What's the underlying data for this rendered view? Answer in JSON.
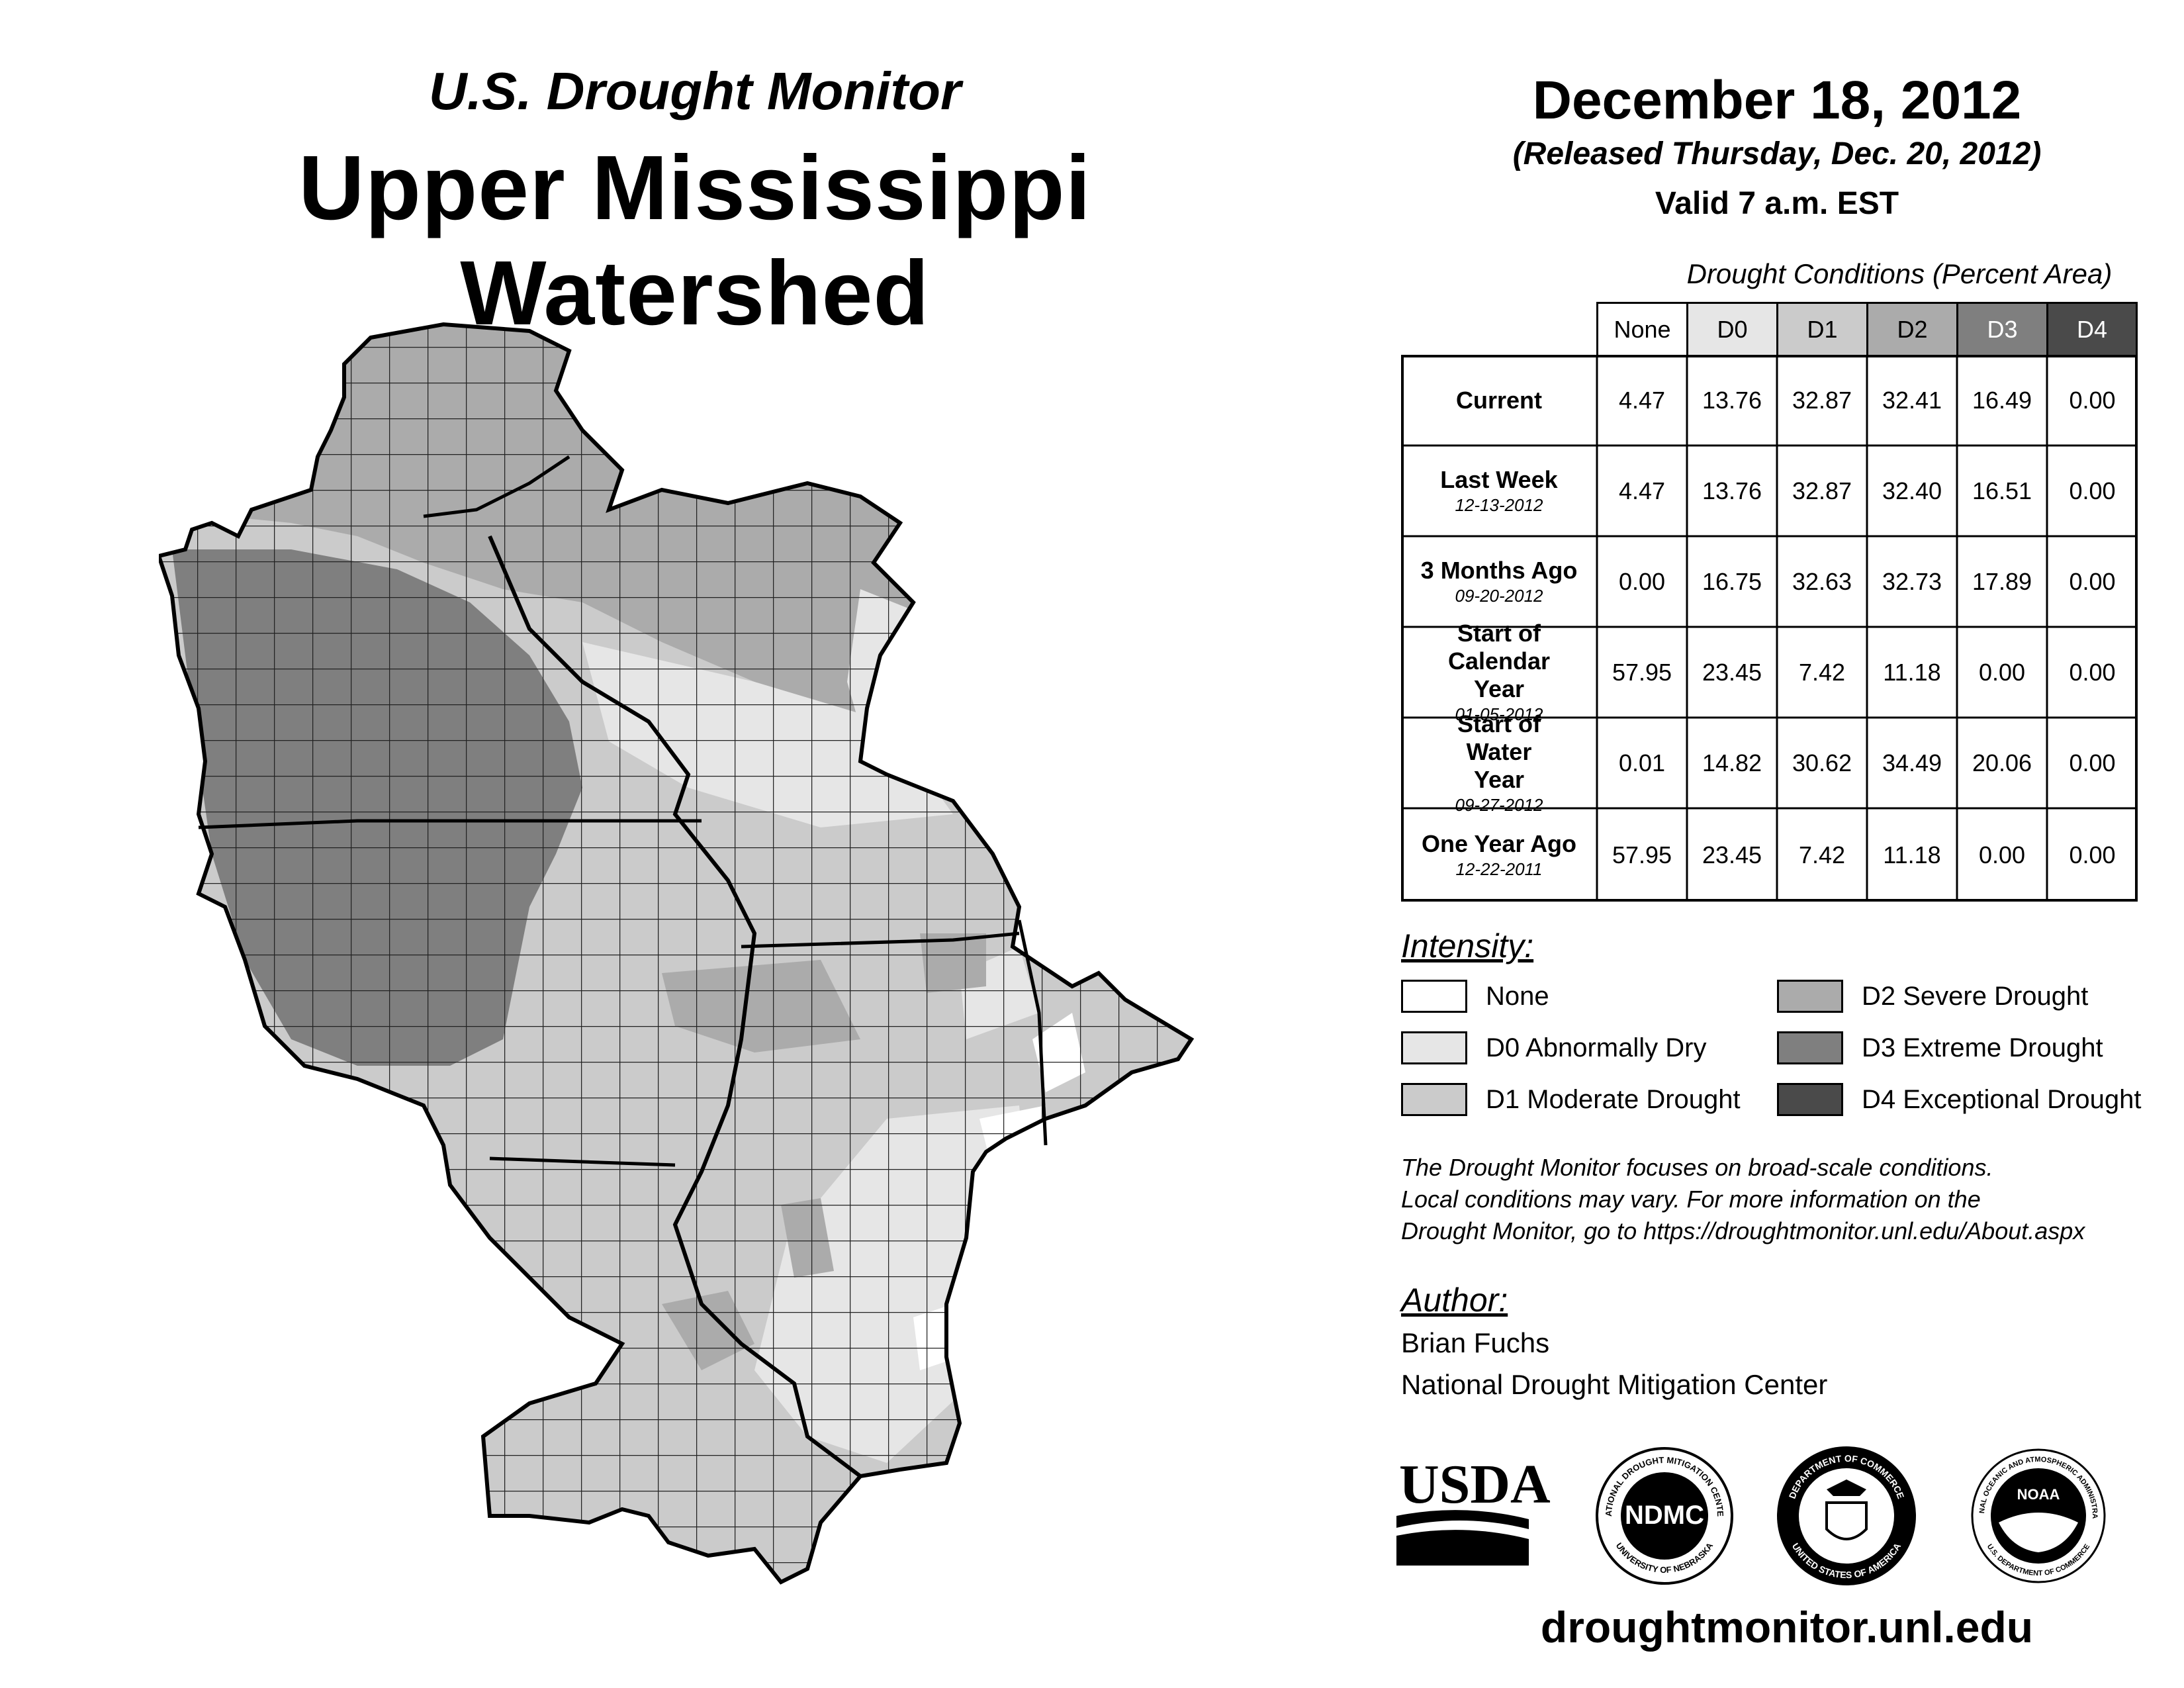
{
  "header": {
    "subtitle": "U.S. Drought Monitor",
    "title": "Upper Mississippi Watershed",
    "date": "December 18, 2012",
    "released": "(Released Thursday, Dec. 20, 2012)",
    "valid": "Valid 7 a.m. EST"
  },
  "table": {
    "caption": "Drought Conditions (Percent Area)",
    "columns": [
      "None",
      "D0",
      "D1",
      "D2",
      "D3",
      "D4"
    ],
    "rows": [
      {
        "label": "Current",
        "date": "",
        "values": [
          "4.47",
          "13.76",
          "32.87",
          "32.41",
          "16.49",
          "0.00"
        ]
      },
      {
        "label": "Last Week",
        "date": "12-13-2012",
        "values": [
          "4.47",
          "13.76",
          "32.87",
          "32.40",
          "16.51",
          "0.00"
        ]
      },
      {
        "label": "3 Months Ago",
        "date": "09-20-2012",
        "values": [
          "0.00",
          "16.75",
          "32.63",
          "32.73",
          "17.89",
          "0.00"
        ]
      },
      {
        "label": "Start of Calendar Year",
        "date": "01-05-2012",
        "values": [
          "57.95",
          "23.45",
          "7.42",
          "11.18",
          "0.00",
          "0.00"
        ]
      },
      {
        "label": "Start of Water Year",
        "date": "09-27-2012",
        "values": [
          "0.01",
          "14.82",
          "30.62",
          "34.49",
          "20.06",
          "0.00"
        ]
      },
      {
        "label": "One Year Ago",
        "date": "12-22-2011",
        "values": [
          "57.95",
          "23.45",
          "7.42",
          "11.18",
          "0.00",
          "0.00"
        ]
      }
    ]
  },
  "legend": {
    "title": "Intensity:",
    "items": [
      {
        "label": "None",
        "color": "#ffffff"
      },
      {
        "label": "D0 Abnormally Dry",
        "color": "#e6e6e6"
      },
      {
        "label": "D1 Moderate Drought",
        "color": "#cbcbcb"
      },
      {
        "label": "D2 Severe Drought",
        "color": "#ababab"
      },
      {
        "label": "D3 Extreme Drought",
        "color": "#7f7f7f"
      },
      {
        "label": "D4 Exceptional Drought",
        "color": "#4a4a4a"
      }
    ]
  },
  "note": {
    "line1": "The Drought Monitor focuses on broad-scale conditions.",
    "line2": "Local conditions may vary. For more information on the",
    "line3": "Drought Monitor, go to https://droughtmonitor.unl.edu/About.aspx"
  },
  "author": {
    "title": "Author:",
    "name": "Brian Fuchs",
    "org": "National Drought Mitigation Center"
  },
  "logos": {
    "usda": "USDA",
    "ndmc": "NDMC",
    "ndmc_ring": "NATIONAL DROUGHT MITIGATION CENTER",
    "ndmc_ring2": "UNIVERSITY OF NEBRASKA",
    "doc_ring": "DEPARTMENT OF COMMERCE",
    "doc_ring2": "UNITED STATES OF AMERICA",
    "noaa": "NOAA",
    "noaa_ring": "NATIONAL OCEANIC AND ATMOSPHERIC ADMINISTRATION",
    "noaa_ring2": "U.S. DEPARTMENT OF COMMERCE"
  },
  "footer": {
    "url": "droughtmonitor.unl.edu"
  }
}
